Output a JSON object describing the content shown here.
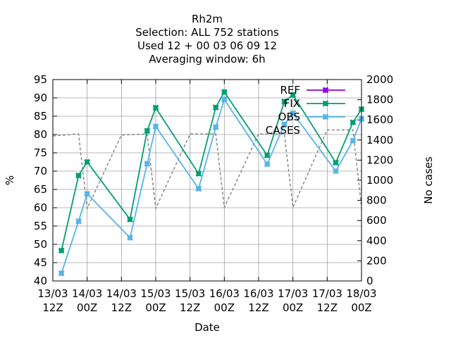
{
  "chart_data": {
    "type": "line",
    "title_lines": [
      "Rh2m",
      "Selection: ALL    752 stations",
      "Used  12 + 00 03 06 09 12",
      "Averaging window:  6h"
    ],
    "xlabel": "Date",
    "ylabel": "%",
    "y2label": "No cases",
    "x_range": [
      0,
      108
    ],
    "ylim": [
      40,
      95
    ],
    "y_ticks": [
      40,
      45,
      50,
      55,
      60,
      65,
      70,
      75,
      80,
      85,
      90,
      95
    ],
    "y2lim": [
      0,
      2000
    ],
    "y2_ticks": [
      0,
      200,
      400,
      600,
      800,
      1000,
      1200,
      1400,
      1600,
      1800,
      2000
    ],
    "x_ticks": [
      {
        "x": 0,
        "line1": "13/03",
        "line2": "12Z"
      },
      {
        "x": 12,
        "line1": "14/03",
        "line2": "00Z"
      },
      {
        "x": 24,
        "line1": "14/03",
        "line2": "12Z"
      },
      {
        "x": 36,
        "line1": "15/03",
        "line2": "00Z"
      },
      {
        "x": 48,
        "line1": "15/03",
        "line2": "12Z"
      },
      {
        "x": 60,
        "line1": "16/03",
        "line2": "00Z"
      },
      {
        "x": 72,
        "line1": "16/03",
        "line2": "12Z"
      },
      {
        "x": 84,
        "line1": "17/03",
        "line2": "00Z"
      },
      {
        "x": 96,
        "line1": "17/03",
        "line2": "12Z"
      },
      {
        "x": 108,
        "line1": "18/03",
        "line2": "00Z"
      }
    ],
    "legend_position": "top-right",
    "series": [
      {
        "name": "REF",
        "color": "#9400d3",
        "marker": "star",
        "axis": "y1",
        "x": [],
        "values": []
      },
      {
        "name": "FIX",
        "color": "#009e73",
        "marker": "star",
        "axis": "y1",
        "x": [
          3,
          9,
          12,
          27,
          33,
          36,
          51,
          57,
          60,
          75,
          81,
          84,
          99,
          105,
          108
        ],
        "values": [
          48.3,
          68.8,
          72.5,
          56.8,
          81.0,
          87.3,
          69.3,
          87.4,
          91.6,
          74.3,
          89.0,
          90.8,
          72.3,
          83.3,
          86.9
        ]
      },
      {
        "name": "OBS",
        "color": "#56b4e9",
        "marker": "star",
        "axis": "y1",
        "x": [
          3,
          9,
          12,
          27,
          33,
          36,
          51,
          57,
          60,
          75,
          81,
          84,
          99,
          105,
          108
        ],
        "values": [
          42.1,
          56.3,
          63.8,
          51.8,
          72.0,
          82.2,
          65.2,
          82.0,
          89.6,
          71.9,
          82.8,
          85.8,
          70.0,
          78.3,
          84.3
        ]
      },
      {
        "name": "CASES",
        "color": "#808080",
        "marker": "none",
        "dash": true,
        "axis": "y2",
        "x": [
          0,
          9,
          12,
          24,
          33,
          36,
          48,
          57,
          60,
          72,
          81,
          84,
          96,
          105,
          108
        ],
        "values": [
          1440,
          1460,
          720,
          1450,
          1460,
          720,
          1460,
          1460,
          730,
          1460,
          1460,
          730,
          1500,
          1500,
          730
        ]
      }
    ]
  }
}
